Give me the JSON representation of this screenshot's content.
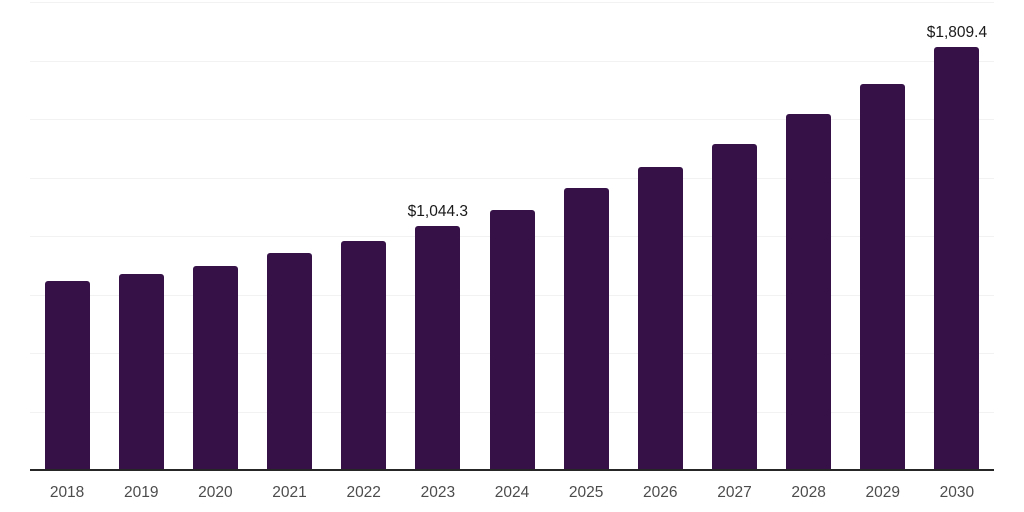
{
  "chart_data": {
    "type": "bar",
    "title": "",
    "xlabel": "",
    "ylabel": "",
    "categories": [
      "2018",
      "2019",
      "2020",
      "2021",
      "2022",
      "2023",
      "2024",
      "2025",
      "2026",
      "2027",
      "2028",
      "2029",
      "2030"
    ],
    "values": [
      808,
      836,
      873,
      927,
      978,
      1044.3,
      1111,
      1204,
      1295,
      1395,
      1523,
      1650,
      1809.4
    ],
    "data_labels": [
      "",
      "",
      "",
      "",
      "",
      "$1,044.3",
      "",
      "",
      "",
      "",
      "",
      "",
      "$1,809.4"
    ],
    "ylim": [
      0,
      2000
    ],
    "gridline_step": 250,
    "grid": "horizontal",
    "y_tick_labels_visible": false,
    "legend_position": "none",
    "colors": {
      "bar": "#351148",
      "axis_line": "#262626",
      "gridline": "#f2f2f2",
      "value_label": "#1a1a1a",
      "tick_label": "#4c4c4c",
      "background": "#ffffff"
    }
  }
}
